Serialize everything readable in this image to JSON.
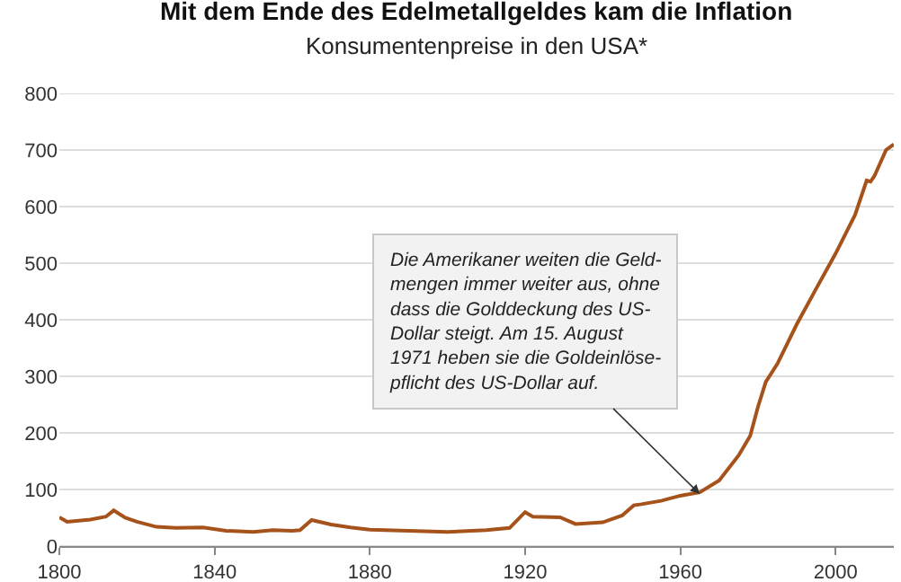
{
  "chart_data": {
    "type": "line",
    "title": "Mit dem Ende des Edelmetallgeldes kam die Inflation",
    "subtitle": "Konsumentenpreise in den USA*",
    "x": [
      1800,
      1802,
      1805,
      1808,
      1812,
      1814,
      1817,
      1820,
      1825,
      1830,
      1837,
      1843,
      1850,
      1855,
      1860,
      1862,
      1865,
      1870,
      1875,
      1880,
      1890,
      1900,
      1910,
      1916,
      1920,
      1922,
      1929,
      1933,
      1940,
      1945,
      1948,
      1950,
      1955,
      1960,
      1965,
      1970,
      1975,
      1978,
      1980,
      1982,
      1985,
      1990,
      1995,
      2000,
      2005,
      2008,
      2009,
      2010,
      2013,
      2015
    ],
    "series": [
      {
        "color": "#a5521b",
        "values": [
          51,
          43,
          45,
          47,
          52,
          63,
          50,
          43,
          34,
          32,
          33,
          27,
          25,
          28,
          27,
          28,
          46,
          38,
          33,
          29,
          27,
          25,
          28,
          32,
          60,
          52,
          51,
          39,
          42,
          54,
          72,
          74,
          80,
          89,
          95,
          116,
          160,
          195,
          246,
          290,
          322,
          392,
          455,
          517,
          585,
          646,
          644,
          654,
          700,
          710
        ]
      }
    ],
    "xlim": [
      1800,
      2015
    ],
    "xticks": [
      1800,
      1840,
      1880,
      1920,
      1960,
      2000
    ],
    "ylim": [
      0,
      800
    ],
    "yticks": [
      0,
      100,
      200,
      300,
      400,
      500,
      600,
      700,
      800
    ],
    "grid": "y",
    "line_style": "solid",
    "marker": "none",
    "annotations": [
      {
        "text": "Die Amerikaner weiten die Geld-\nmengen immer weiter aus, ohne\ndass die Golddeckung des US-\nDollar steigt. Am 15. August\n1971 heben sie die Goldeinlöse-\npflicht des US-Dollar auf.",
        "x": 1965,
        "y": 92
      }
    ]
  }
}
